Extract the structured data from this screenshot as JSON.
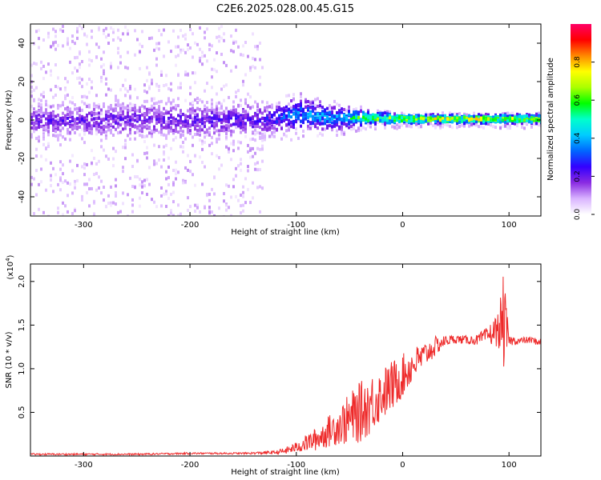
{
  "page_title": "C2E6.2025.028.00.45.G15",
  "chart_data": [
    {
      "type": "heatmap",
      "title": "C2E6.2025.028.00.45.G15",
      "xlabel": "Height of straight line (km)",
      "ylabel": "Frequency (Hz)",
      "xlim": [
        -350,
        130
      ],
      "ylim": [
        -50,
        50
      ],
      "xticks": [
        -300,
        -200,
        -100,
        0,
        100
      ],
      "xtick_labels": [
        "-300",
        "-200",
        "-100",
        "0",
        "100"
      ],
      "yticks": [
        -40,
        -20,
        0,
        20,
        40
      ],
      "ytick_labels": [
        "-40",
        "-20",
        "0",
        "20",
        "40"
      ],
      "colorbar": {
        "label": "Normalized spectral amplitude",
        "range": [
          0,
          1
        ],
        "ticks": [
          0.0,
          0.2,
          0.4,
          0.6,
          0.8
        ],
        "tick_labels": [
          "0.0",
          "0.2",
          "0.4",
          "0.6",
          "0.8"
        ],
        "colormap": [
          "#ffffff",
          "#d9b3ff",
          "#8a2be2",
          "#3300ff",
          "#0066ff",
          "#00ccff",
          "#00ffcc",
          "#00ff00",
          "#aaff00",
          "#ffff00",
          "#ff8800",
          "#ff0000",
          "#ff0066"
        ]
      },
      "band_profile": [
        {
          "x": -350,
          "center": 0,
          "core_halfwidth": 8,
          "scatter_halfwidth": 50,
          "peak_amplitude": 0.25
        },
        {
          "x": -200,
          "center": 0,
          "core_halfwidth": 9,
          "scatter_halfwidth": 50,
          "peak_amplitude": 0.25
        },
        {
          "x": -135,
          "center": 0,
          "core_halfwidth": 8,
          "scatter_halfwidth": 50,
          "peak_amplitude": 0.3
        },
        {
          "x": -130,
          "center": 0,
          "core_halfwidth": 7,
          "scatter_halfwidth": 12,
          "peak_amplitude": 0.3
        },
        {
          "x": -100,
          "center": 3,
          "core_halfwidth": 8,
          "scatter_halfwidth": 12,
          "peak_amplitude": 0.45
        },
        {
          "x": -60,
          "center": 1,
          "core_halfwidth": 5,
          "scatter_halfwidth": 8,
          "peak_amplitude": 0.5
        },
        {
          "x": -30,
          "center": 1,
          "core_halfwidth": 3,
          "scatter_halfwidth": 5,
          "peak_amplitude": 0.8
        },
        {
          "x": 0,
          "center": 0.5,
          "core_halfwidth": 2,
          "scatter_halfwidth": 4,
          "peak_amplitude": 0.9
        },
        {
          "x": 100,
          "center": 0.5,
          "core_halfwidth": 2,
          "scatter_halfwidth": 4,
          "peak_amplitude": 0.9
        },
        {
          "x": 130,
          "center": 0.5,
          "core_halfwidth": 2,
          "scatter_halfwidth": 4,
          "peak_amplitude": 0.85
        }
      ]
    },
    {
      "type": "line",
      "xlabel": "Height of straight line (km)",
      "ylabel": "SNR (10 * v/v)",
      "y_multiplier_label": "(x10",
      "y_multiplier_exponent": "4",
      "y_multiplier_suffix": ")",
      "xlim": [
        -350,
        130
      ],
      "ylim": [
        0,
        2.2
      ],
      "xticks": [
        -300,
        -200,
        -100,
        0,
        100
      ],
      "xtick_labels": [
        "-300",
        "-200",
        "-100",
        "0",
        "100"
      ],
      "yticks": [
        0.5,
        1.0,
        1.5,
        2.0
      ],
      "ytick_labels": [
        "0.5",
        "1.0",
        "1.5",
        "2.0"
      ],
      "series": [
        {
          "color": "#ee2a2a",
          "x": [
            -350,
            -300,
            -250,
            -200,
            -150,
            -120,
            -110,
            -100,
            -90,
            -80,
            -70,
            -60,
            -50,
            -40,
            -30,
            -20,
            -10,
            0,
            10,
            20,
            30,
            40,
            50,
            60,
            70,
            80,
            90,
            95,
            100,
            110,
            120,
            130
          ],
          "y": [
            0.02,
            0.02,
            0.02,
            0.03,
            0.03,
            0.04,
            0.06,
            0.1,
            0.15,
            0.2,
            0.28,
            0.35,
            0.42,
            0.5,
            0.6,
            0.7,
            0.8,
            0.92,
            1.05,
            1.15,
            1.25,
            1.32,
            1.34,
            1.33,
            1.33,
            1.38,
            1.45,
            1.55,
            1.32,
            1.32,
            1.33,
            1.3
          ],
          "spread": [
            0.01,
            0.01,
            0.01,
            0.01,
            0.01,
            0.02,
            0.04,
            0.06,
            0.1,
            0.14,
            0.18,
            0.22,
            0.3,
            0.35,
            0.35,
            0.3,
            0.3,
            0.25,
            0.2,
            0.15,
            0.12,
            0.06,
            0.05,
            0.05,
            0.06,
            0.1,
            0.2,
            0.55,
            0.06,
            0.04,
            0.04,
            0.04
          ]
        }
      ]
    }
  ]
}
